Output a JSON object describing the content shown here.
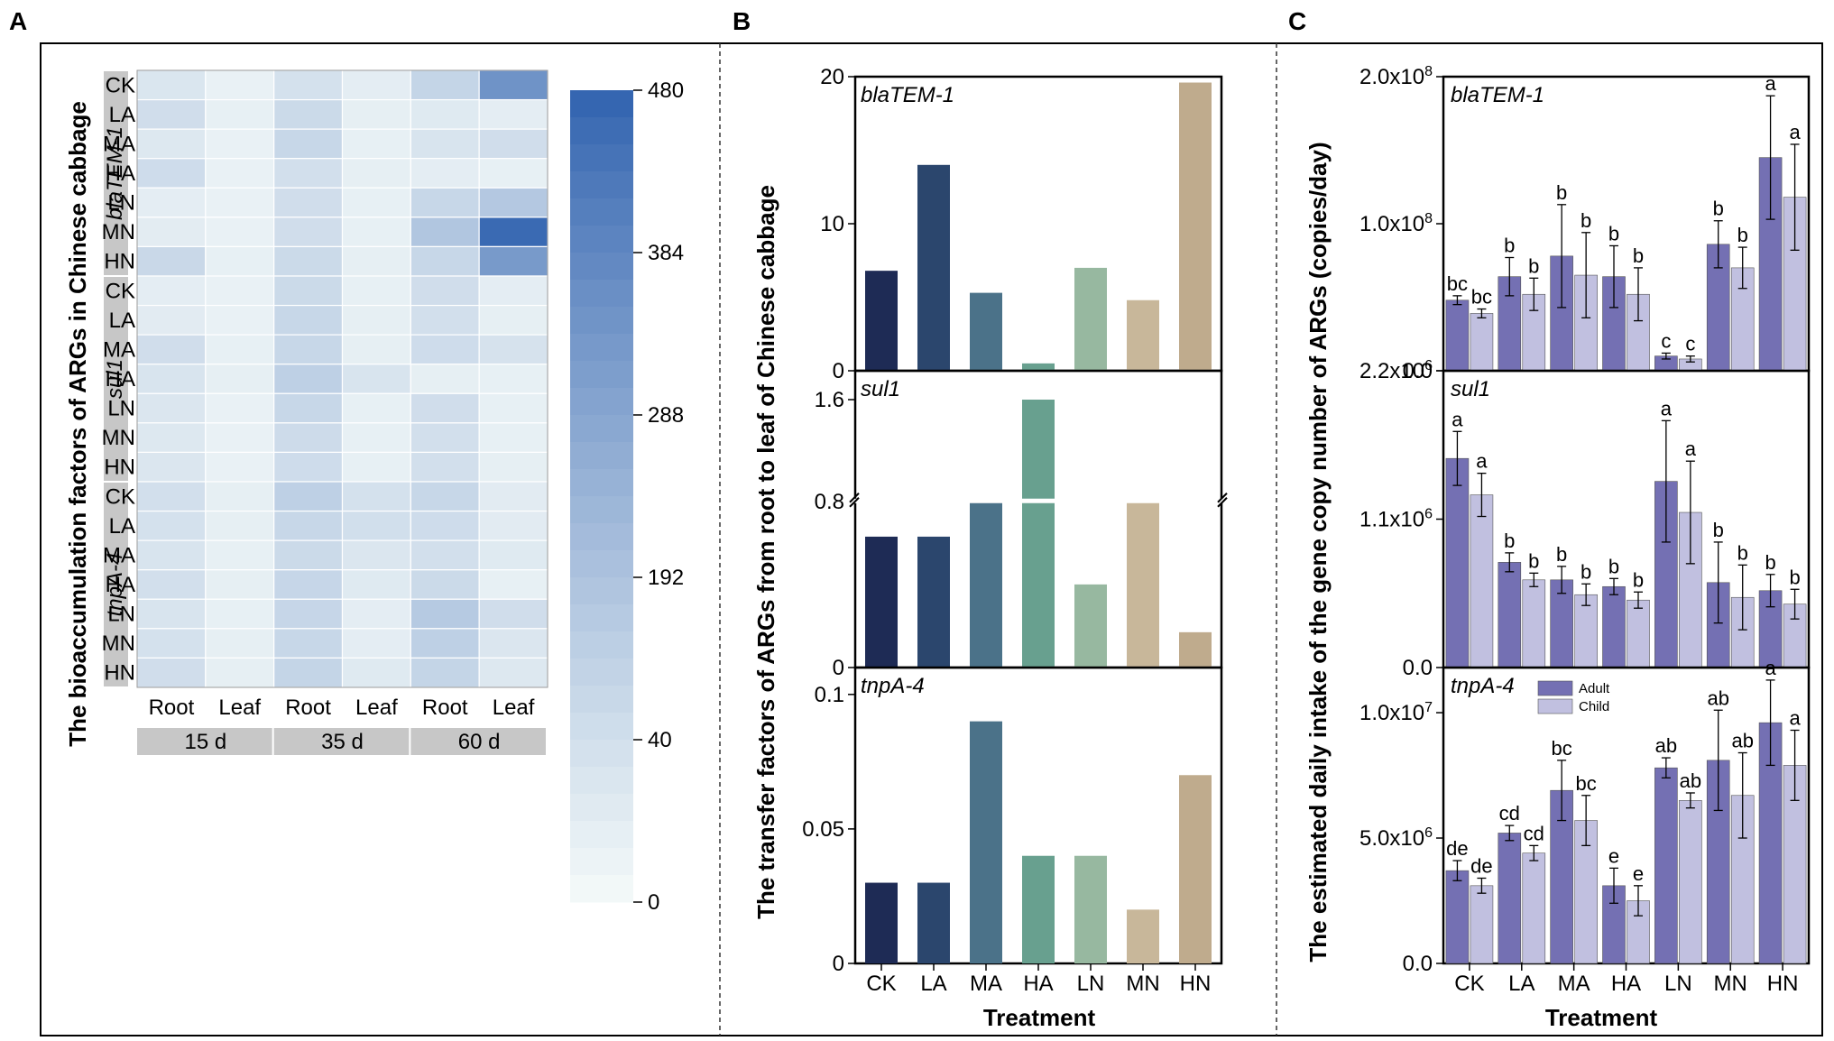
{
  "panels": {
    "a": "A",
    "b": "B",
    "c": "C"
  },
  "colors": {
    "heat_low": "#f2f8f8",
    "heat_high": "#3566b1",
    "treat": [
      "#1e2b55",
      "#2b466d",
      "#4b7289",
      "#68a08f",
      "#97b8a0",
      "#c8b79a",
      "#bfab8d"
    ],
    "adult": "#7470b3",
    "child": "#c1c0e0",
    "band_gray": "#c7c7c7"
  },
  "chart_data": [
    {
      "type": "heatmap",
      "id": "A",
      "ylabel": "The bioaccumulation factors of ARGs in Chinese cabbage",
      "genes": [
        "blaTEM-1",
        "sul1",
        "tnpA-4"
      ],
      "rows": [
        "CK",
        "LA",
        "MA",
        "HA",
        "LN",
        "MN",
        "HN"
      ],
      "columns": [
        "Root",
        "Leaf",
        "Root",
        "Leaf",
        "Root",
        "Leaf"
      ],
      "column_groups": [
        "15 d",
        "35 d",
        "60 d"
      ],
      "colorbar_ticks": [
        "480",
        "384",
        "288",
        "192",
        "40",
        "0"
      ],
      "colorbar_range": [
        0,
        480
      ],
      "values": [
        [
          [
            15,
            3,
            22,
            6,
            45,
            260
          ],
          [
            28,
            4,
            35,
            5,
            10,
            6
          ],
          [
            12,
            3,
            40,
            4,
            18,
            28
          ],
          [
            30,
            3,
            25,
            5,
            6,
            4
          ],
          [
            6,
            3,
            28,
            4,
            40,
            75
          ],
          [
            7,
            3,
            28,
            4,
            80,
            460
          ],
          [
            38,
            4,
            35,
            5,
            40,
            230
          ]
        ],
        [
          [
            6,
            3,
            35,
            4,
            28,
            6
          ],
          [
            8,
            3,
            40,
            5,
            25,
            5
          ],
          [
            28,
            4,
            40,
            5,
            30,
            20
          ],
          [
            18,
            5,
            55,
            18,
            5,
            4
          ],
          [
            14,
            3,
            40,
            4,
            28,
            4
          ],
          [
            12,
            3,
            32,
            4,
            25,
            4
          ],
          [
            14,
            3,
            30,
            4,
            25,
            5
          ]
        ],
        [
          [
            25,
            5,
            55,
            22,
            40,
            8
          ],
          [
            22,
            5,
            40,
            26,
            30,
            8
          ],
          [
            18,
            4,
            35,
            14,
            25,
            10
          ],
          [
            25,
            5,
            42,
            10,
            35,
            4
          ],
          [
            18,
            4,
            42,
            6,
            70,
            28
          ],
          [
            22,
            5,
            40,
            6,
            55,
            14
          ],
          [
            28,
            5,
            45,
            10,
            45,
            12
          ]
        ]
      ]
    },
    {
      "type": "bar",
      "id": "B",
      "ylabel": "The  transfer factors of ARGs from root to leaf of Chinese cabbage",
      "xlabel": "Treatment",
      "categories": [
        "CK",
        "LA",
        "MA",
        "HA",
        "LN",
        "MN",
        "HN"
      ],
      "subplots": [
        {
          "gene": "blaTEM-1",
          "ylim": [
            0,
            20
          ],
          "ticks": [
            "20",
            "10",
            "0"
          ],
          "values": [
            6.8,
            14.0,
            5.3,
            0.5,
            7.0,
            4.8,
            19.6
          ]
        },
        {
          "gene": "sul1",
          "ylim": [
            0,
            1.6
          ],
          "broken_axis": [
            0.8,
            1.6
          ],
          "ticks": [
            "1.6",
            "0.8",
            "0"
          ],
          "values": [
            0.63,
            0.63,
            0.8,
            1.6,
            0.4,
            0.8,
            0.17
          ]
        },
        {
          "gene": "tnpA-4",
          "ylim": [
            0,
            0.11
          ],
          "ticks": [
            "0.1",
            "0.05",
            "0"
          ],
          "values": [
            0.03,
            0.03,
            0.09,
            0.04,
            0.04,
            0.02,
            0.07
          ]
        }
      ]
    },
    {
      "type": "bar",
      "id": "C",
      "ylabel": "The estimated daily intake of the gene copy number of  ARGs (copies/day)",
      "xlabel": "Treatment",
      "categories": [
        "CK",
        "LA",
        "MA",
        "HA",
        "LN",
        "MN",
        "HN"
      ],
      "legend": [
        "Adult",
        "Child"
      ],
      "subplots": [
        {
          "gene": "blaTEM-1",
          "ylim": [
            0,
            200000000.0
          ],
          "ticks": [
            "2.0x10^8",
            "1.0x10^8",
            "0.0"
          ],
          "adult": [
            48000000.0,
            64000000.0,
            78000000.0,
            64000000.0,
            10000000.0,
            86000000.0,
            145000000.0
          ],
          "adult_err": [
            3000000.0,
            13000000.0,
            35000000.0,
            21000000.0,
            2000000.0,
            16000000.0,
            42000000.0
          ],
          "child": [
            39000000.0,
            52000000.0,
            65000000.0,
            52000000.0,
            8000000.0,
            70000000.0,
            118000000.0
          ],
          "child_err": [
            3000000.0,
            11000000.0,
            29000000.0,
            18000000.0,
            2000000.0,
            14000000.0,
            36000000.0
          ],
          "adult_sig": [
            "bc",
            "b",
            "b",
            "b",
            "c",
            "b",
            "a"
          ],
          "child_sig": [
            "bc",
            "b",
            "b",
            "b",
            "c",
            "b",
            "a"
          ]
        },
        {
          "gene": "sul1",
          "ylim": [
            0,
            2200000.0
          ],
          "ticks": [
            "2.2x10^6",
            "1.1x10^6",
            "0.0"
          ],
          "adult": [
            1550000.0,
            780000.0,
            650000.0,
            600000.0,
            1380000.0,
            630000.0,
            570000.0
          ],
          "adult_err": [
            200000.0,
            70000.0,
            100000.0,
            60000.0,
            450000.0,
            300000.0,
            120000.0
          ],
          "child": [
            1280000.0,
            650000.0,
            540000.0,
            500000.0,
            1150000.0,
            520000.0,
            470000.0
          ],
          "child_err": [
            160000.0,
            50000.0,
            80000.0,
            60000.0,
            380000.0,
            240000.0,
            110000.0
          ],
          "adult_sig": [
            "a",
            "b",
            "b",
            "b",
            "a",
            "b",
            "b"
          ],
          "child_sig": [
            "a",
            "b",
            "b",
            "b",
            "a",
            "b",
            "b"
          ]
        },
        {
          "gene": "tnpA-4",
          "ylim": [
            0,
            11800000.0
          ],
          "ticks": [
            "1.0x10^7",
            "5.0x10^6",
            "0.0"
          ],
          "adult": [
            3700000.0,
            5200000.0,
            6900000.0,
            3100000.0,
            7800000.0,
            8100000.0,
            9600000.0
          ],
          "adult_err": [
            400000.0,
            300000.0,
            1200000.0,
            700000.0,
            400000.0,
            2000000.0,
            1700000.0
          ],
          "child": [
            3100000.0,
            4400000.0,
            5700000.0,
            2500000.0,
            6500000.0,
            6700000.0,
            7900000.0
          ],
          "child_err": [
            300000.0,
            300000.0,
            1000000.0,
            600000.0,
            300000.0,
            1700000.0,
            1400000.0
          ],
          "adult_sig": [
            "de",
            "cd",
            "bc",
            "e",
            "ab",
            "ab",
            "a"
          ],
          "child_sig": [
            "de",
            "cd",
            "bc",
            "e",
            "ab",
            "ab",
            "a"
          ]
        }
      ]
    }
  ]
}
